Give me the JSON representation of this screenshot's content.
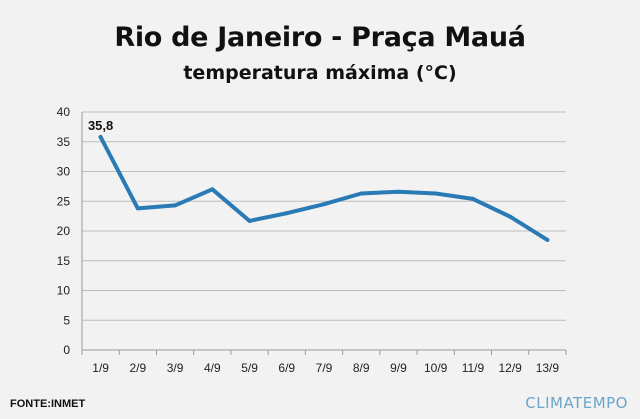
{
  "chart_data": {
    "type": "line",
    "title": "Rio de Janeiro - Praça Mauá",
    "subtitle": "temperatura máxima (°C)",
    "categories": [
      "1/9",
      "2/9",
      "3/9",
      "4/9",
      "5/9",
      "6/9",
      "7/9",
      "8/9",
      "9/9",
      "10/9",
      "11/9",
      "12/9",
      "13/9"
    ],
    "series": [
      {
        "values": [
          35.8,
          23.8,
          24.3,
          27.0,
          21.7,
          23.0,
          24.5,
          26.3,
          26.6,
          26.3,
          25.4,
          22.4,
          18.5
        ]
      }
    ],
    "data_labels": [
      {
        "index": 0,
        "text": "35,8"
      }
    ],
    "yticks": [
      0,
      5,
      10,
      15,
      20,
      25,
      30,
      35,
      40
    ],
    "ylim": [
      0,
      40
    ],
    "grid": true,
    "legend": "none",
    "line_color": "#2a7ab5"
  },
  "footer": {
    "source": "FONTE:INMET",
    "brand": "CLIMATEMPO"
  }
}
